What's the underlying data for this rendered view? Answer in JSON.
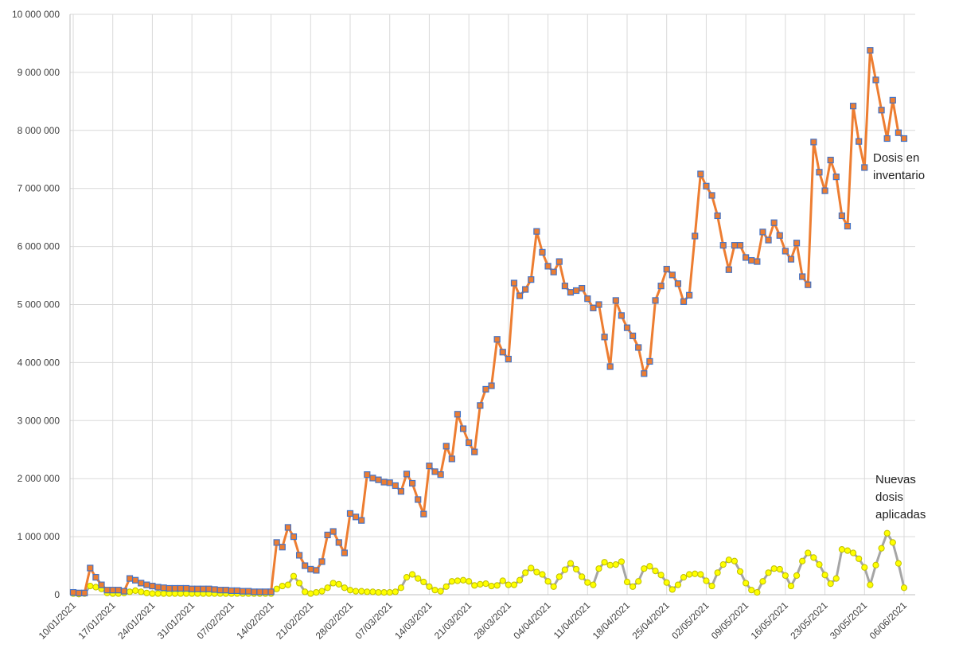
{
  "chart_data": {
    "type": "line",
    "categories": [
      "10/01/2021",
      null,
      null,
      null,
      null,
      null,
      null,
      "17/01/2021",
      null,
      null,
      null,
      null,
      null,
      null,
      "24/01/2021",
      null,
      null,
      null,
      null,
      null,
      null,
      "31/01/2021",
      null,
      null,
      null,
      null,
      null,
      null,
      "07/02/2021",
      null,
      null,
      null,
      null,
      null,
      null,
      "14/02/2021",
      null,
      null,
      null,
      null,
      null,
      null,
      "21/02/2021",
      null,
      null,
      null,
      null,
      null,
      null,
      "28/02/2021",
      null,
      null,
      null,
      null,
      null,
      null,
      "07/03/2021",
      null,
      null,
      null,
      null,
      null,
      null,
      "14/03/2021",
      null,
      null,
      null,
      null,
      null,
      null,
      "21/03/2021",
      null,
      null,
      null,
      null,
      null,
      null,
      "28/03/2021",
      null,
      null,
      null,
      null,
      null,
      null,
      "04/04/2021",
      null,
      null,
      null,
      null,
      null,
      null,
      "11/04/2021",
      null,
      null,
      null,
      null,
      null,
      null,
      "18/04/2021",
      null,
      null,
      null,
      null,
      null,
      null,
      "25/04/2021",
      null,
      null,
      null,
      null,
      null,
      null,
      "02/05/2021",
      null,
      null,
      null,
      null,
      null,
      null,
      "09/05/2021",
      null,
      null,
      null,
      null,
      null,
      null,
      "16/05/2021",
      null,
      null,
      null,
      null,
      null,
      null,
      "23/05/2021",
      null,
      null,
      null,
      null,
      null,
      null,
      "30/05/2021",
      null,
      null,
      null,
      null,
      null,
      null,
      "06/06/2021"
    ],
    "series": [
      {
        "color": "#ed7d31",
        "marker": "square",
        "marker_edge": "#4472c4",
        "values": [
          40000,
          30000,
          30000,
          460000,
          300000,
          170000,
          80000,
          80000,
          80000,
          60000,
          280000,
          250000,
          200000,
          170000,
          150000,
          130000,
          120000,
          110000,
          110000,
          110000,
          110000,
          100000,
          100000,
          100000,
          100000,
          90000,
          80000,
          80000,
          70000,
          70000,
          60000,
          60000,
          50000,
          50000,
          50000,
          50000,
          900000,
          820000,
          1160000,
          1000000,
          680000,
          500000,
          440000,
          420000,
          570000,
          1030000,
          1090000,
          900000,
          720000,
          1400000,
          1340000,
          1280000,
          2070000,
          2010000,
          1980000,
          1940000,
          1930000,
          1880000,
          1780000,
          2080000,
          1920000,
          1640000,
          1390000,
          2220000,
          2120000,
          2070000,
          2560000,
          2340000,
          3110000,
          2860000,
          2620000,
          2460000,
          3260000,
          3540000,
          3600000,
          4400000,
          4180000,
          4060000,
          5370000,
          5150000,
          5260000,
          5430000,
          6260000,
          5900000,
          5660000,
          5560000,
          5740000,
          5320000,
          5210000,
          5240000,
          5280000,
          5100000,
          4940000,
          5000000,
          4440000,
          3930000,
          5070000,
          4810000,
          4600000,
          4460000,
          4260000,
          3810000,
          4020000,
          5070000,
          5320000,
          5610000,
          5510000,
          5360000,
          5050000,
          5160000,
          6180000,
          7250000,
          7040000,
          6880000,
          6530000,
          6020000,
          5600000,
          6020000,
          6020000,
          5810000,
          5760000,
          5740000,
          6250000,
          6110000,
          6410000,
          6190000,
          5920000,
          5780000,
          6060000,
          5480000,
          5340000,
          7800000,
          7280000,
          6960000,
          7490000,
          7200000,
          6530000,
          6350000,
          8420000,
          7810000,
          7360000,
          9380000,
          8870000,
          8350000,
          7860000,
          8520000,
          7960000,
          7860000
        ]
      },
      {
        "color": "#a5a5a5",
        "marker": "circle",
        "marker_fill": "#ffff00",
        "marker_edge": "#bfbf00",
        "values": [
          20000,
          10000,
          20000,
          150000,
          130000,
          100000,
          30000,
          20000,
          20000,
          30000,
          50000,
          70000,
          50000,
          30000,
          20000,
          20000,
          20000,
          20000,
          20000,
          20000,
          20000,
          20000,
          20000,
          20000,
          20000,
          20000,
          20000,
          20000,
          20000,
          20000,
          20000,
          20000,
          20000,
          20000,
          20000,
          20000,
          100000,
          150000,
          170000,
          320000,
          200000,
          50000,
          20000,
          40000,
          60000,
          120000,
          200000,
          180000,
          120000,
          80000,
          60000,
          60000,
          50000,
          50000,
          40000,
          40000,
          40000,
          50000,
          120000,
          300000,
          350000,
          280000,
          220000,
          140000,
          80000,
          60000,
          140000,
          230000,
          240000,
          250000,
          230000,
          160000,
          180000,
          190000,
          150000,
          160000,
          240000,
          170000,
          170000,
          250000,
          380000,
          460000,
          390000,
          350000,
          230000,
          140000,
          310000,
          430000,
          540000,
          440000,
          310000,
          210000,
          170000,
          450000,
          560000,
          510000,
          520000,
          570000,
          220000,
          140000,
          230000,
          450000,
          490000,
          410000,
          340000,
          210000,
          90000,
          170000,
          300000,
          350000,
          360000,
          350000,
          240000,
          150000,
          380000,
          520000,
          600000,
          580000,
          400000,
          200000,
          80000,
          40000,
          230000,
          380000,
          450000,
          440000,
          330000,
          150000,
          330000,
          580000,
          720000,
          640000,
          520000,
          340000,
          190000,
          280000,
          780000,
          760000,
          720000,
          620000,
          470000,
          170000,
          510000,
          800000,
          1060000,
          900000,
          540000,
          120000
        ]
      }
    ],
    "annotations": [
      [
        "Dosis en",
        "inventario"
      ],
      [
        "Nuevas",
        "dosis",
        "aplicadas"
      ]
    ],
    "ylim": [
      0,
      10000000
    ],
    "yticks": [
      0,
      {
        "value": 1000000,
        "label": "1 000 000"
      },
      {
        "value": 2000000,
        "label": "2 000 000"
      },
      {
        "value": 3000000,
        "label": "3 000 000"
      },
      {
        "value": 4000000,
        "label": "4 000 000"
      },
      {
        "value": 5000000,
        "label": "5 000 000"
      },
      {
        "value": 6000000,
        "label": "6 000 000"
      },
      {
        "value": 7000000,
        "label": "7 000 000"
      },
      {
        "value": 8000000,
        "label": "8 000 000"
      },
      {
        "value": 9000000,
        "label": "9 000 000"
      },
      {
        "value": 10000000,
        "label": "10 000 000"
      }
    ],
    "grid": true
  }
}
